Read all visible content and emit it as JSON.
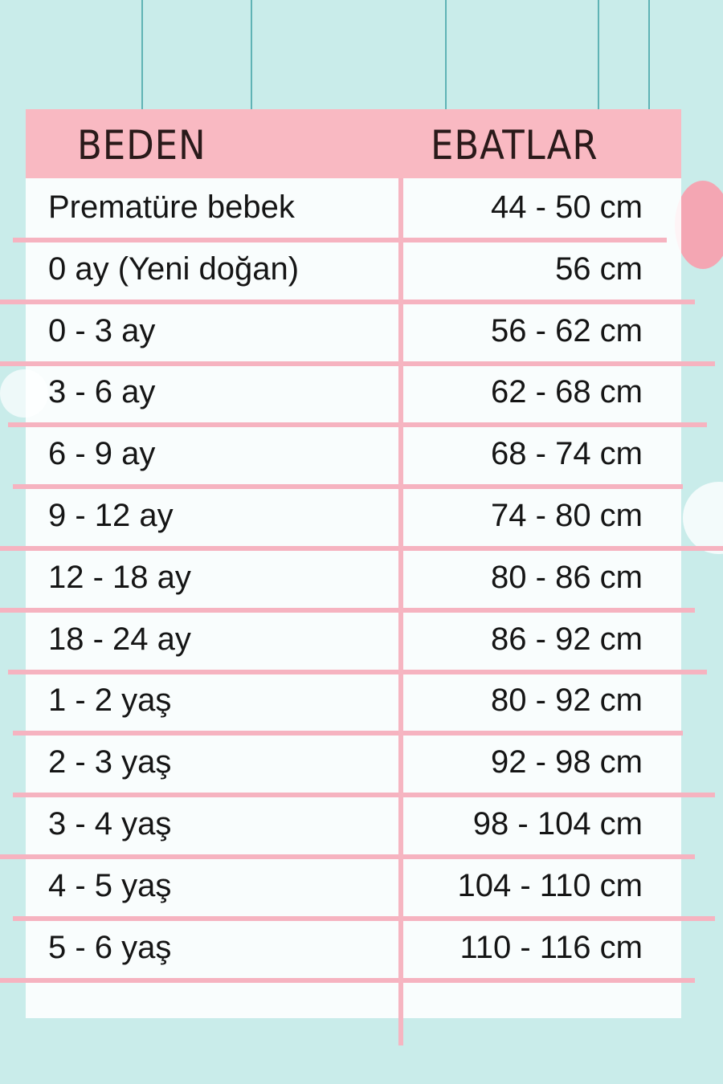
{
  "colors": {
    "background": "#c9ecea",
    "header": "#f9b9c2",
    "rules": "#f6b3c0",
    "strings": "#5fb3b5"
  },
  "table": {
    "headers": [
      "BEDEN",
      "EBATLAR"
    ],
    "rows": [
      {
        "size": "Prematüre bebek",
        "measure": "44 - 50 cm"
      },
      {
        "size": "0 ay (Yeni doğan)",
        "measure": "56 cm"
      },
      {
        "size": "0 - 3 ay",
        "measure": "56 - 62 cm"
      },
      {
        "size": "3 - 6 ay",
        "measure": "62 - 68 cm"
      },
      {
        "size": "6 - 9 ay",
        "measure": "68 - 74 cm"
      },
      {
        "size": "9 - 12 ay",
        "measure": "74 - 80 cm"
      },
      {
        "size": "12 - 18 ay",
        "measure": "80 - 86 cm"
      },
      {
        "size": "18 - 24 ay",
        "measure": "86 - 92 cm"
      },
      {
        "size": "1 - 2 yaş",
        "measure": "80 - 92 cm"
      },
      {
        "size": "2 - 3 yaş",
        "measure": "92 - 98 cm"
      },
      {
        "size": "3 - 4 yaş",
        "measure": "98 - 104 cm"
      },
      {
        "size": "4 - 5 yaş",
        "measure": "104 - 110 cm"
      },
      {
        "size": "5 - 6 yaş",
        "measure": "110 - 116 cm"
      }
    ]
  }
}
